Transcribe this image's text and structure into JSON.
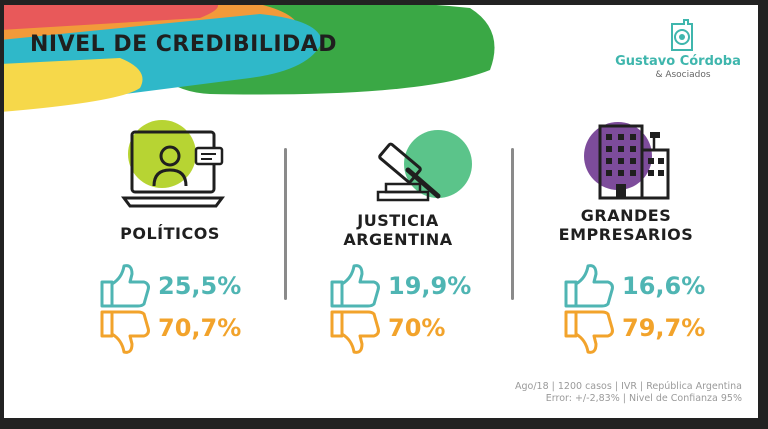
{
  "header": {
    "title": "NIVEL DE CREDIBILIDAD"
  },
  "logo": {
    "name": "Gustavo Córdoba",
    "sub": "& Asociados",
    "color": "#3fb6ad"
  },
  "colors": {
    "positive": "#4fb5b3",
    "negative": "#f2a32b",
    "circle_green": "#b7d433",
    "circle_mint": "#5bc48a",
    "circle_purple": "#7d4c9b"
  },
  "icons": {
    "politicos": "laptop-videocall-icon",
    "justicia": "gavel-icon",
    "empresarios": "buildings-icon",
    "positive": "thumbs-up-icon",
    "negative": "thumbs-down-icon"
  },
  "chart_data": {
    "type": "table",
    "title": "NIVEL DE CREDIBILIDAD",
    "columns": [
      "positive",
      "negative"
    ],
    "categories": [
      "POLÍTICOS",
      "JUSTICIA ARGENTINA",
      "GRANDES EMPRESARIOS"
    ],
    "series": [
      {
        "name": "positive",
        "values": [
          25.5,
          19.9,
          16.6
        ]
      },
      {
        "name": "negative",
        "values": [
          70.7,
          70,
          79.7
        ]
      }
    ],
    "rows": [
      {
        "label_lines": [
          "POLÍTICOS"
        ],
        "positive": "25,5%",
        "negative": "70,7%"
      },
      {
        "label_lines": [
          "JUSTICIA",
          "ARGENTINA"
        ],
        "positive": "19,9%",
        "negative": "70%"
      },
      {
        "label_lines": [
          "GRANDES",
          "EMPRESARIOS"
        ],
        "positive": "16,6%",
        "negative": "79,7%"
      }
    ]
  },
  "footnote": {
    "line1": "Ago/18 | 1200 casos | IVR | República Argentina",
    "line2": "Error: +/-2,83% | Nivel de Confianza 95%"
  }
}
